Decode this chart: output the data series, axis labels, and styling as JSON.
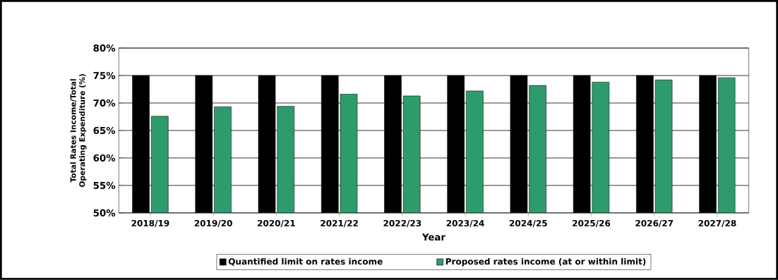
{
  "chart_data": {
    "type": "bar",
    "xlabel": "Year",
    "ylabel": "Total Rates Income/Total Operating Expenditure (%)",
    "categories": [
      "2018/19",
      "2019/20",
      "2020/21",
      "2021/22",
      "2022/23",
      "2023/24",
      "2024/25",
      "2025/26",
      "2026/27",
      "2027/28"
    ],
    "series": [
      {
        "name": "Quantified limit on rates income",
        "color": "#000000",
        "values": [
          75,
          75,
          75,
          75,
          75,
          75,
          75,
          75,
          75,
          75
        ]
      },
      {
        "name": "Proposed rates income (at or within limit)",
        "color": "#2e9b6c",
        "values": [
          67.6,
          69.3,
          69.4,
          71.6,
          71.3,
          72.2,
          73.2,
          73.8,
          74.2,
          74.6
        ]
      }
    ],
    "ylim": [
      50,
      80
    ],
    "yticks": [
      {
        "value": 50,
        "label": "50%"
      },
      {
        "value": 55,
        "label": "55%"
      },
      {
        "value": 60,
        "label": "60%"
      },
      {
        "value": 65,
        "label": "65%"
      },
      {
        "value": 70,
        "label": "70%"
      },
      {
        "value": 75,
        "label": "75%"
      },
      {
        "value": 80,
        "label": "80%"
      }
    ],
    "grid": "y",
    "legend": "bottom"
  }
}
